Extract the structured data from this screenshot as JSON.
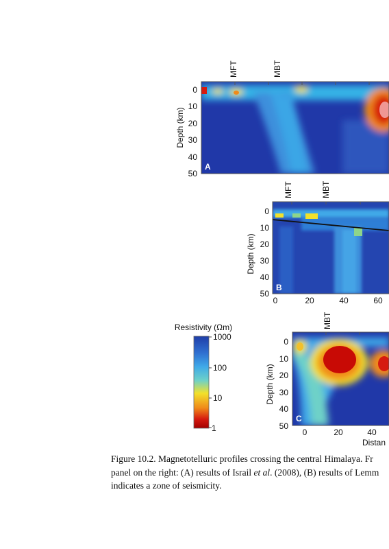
{
  "panels": {
    "A": {
      "letter": "A",
      "faults": [
        "MFT",
        "MBT"
      ],
      "ylabel": "Depth (km)",
      "yticks": [
        "0",
        "10",
        "20",
        "30",
        "40",
        "50"
      ]
    },
    "B": {
      "letter": "B",
      "faults": [
        "MFT",
        "MBT"
      ],
      "ylabel": "Depth (km)",
      "yticks": [
        "0",
        "10",
        "20",
        "30",
        "40",
        "50"
      ],
      "xticks": [
        "0",
        "20",
        "40",
        "60"
      ]
    },
    "C": {
      "letter": "C",
      "faults": [
        "MBT"
      ],
      "ylabel": "Depth (km)",
      "yticks": [
        "0",
        "10",
        "20",
        "30",
        "40",
        "50"
      ],
      "xticks": [
        "0",
        "20",
        "40"
      ],
      "xlabel": "Distan"
    }
  },
  "colorbar": {
    "title": "Resistivity (Ωm)",
    "ticks": [
      "1000",
      "100",
      "10",
      "1"
    ],
    "colors": {
      "high": "#1f3ea8",
      "mid": "#3fa9e8",
      "low": "#f2e12b",
      "lowest": "#b30000"
    }
  },
  "caption": {
    "line1": "Figure 10.2.  Magnetotelluric profiles crossing the central Himalaya. Fr",
    "line2_pre": "panel on the right: (A) results of Israil ",
    "line2_etal": "et al",
    "line2_post": ". (2008), (B) results of Lemm",
    "line3": "indicates a zone of seismicity."
  }
}
